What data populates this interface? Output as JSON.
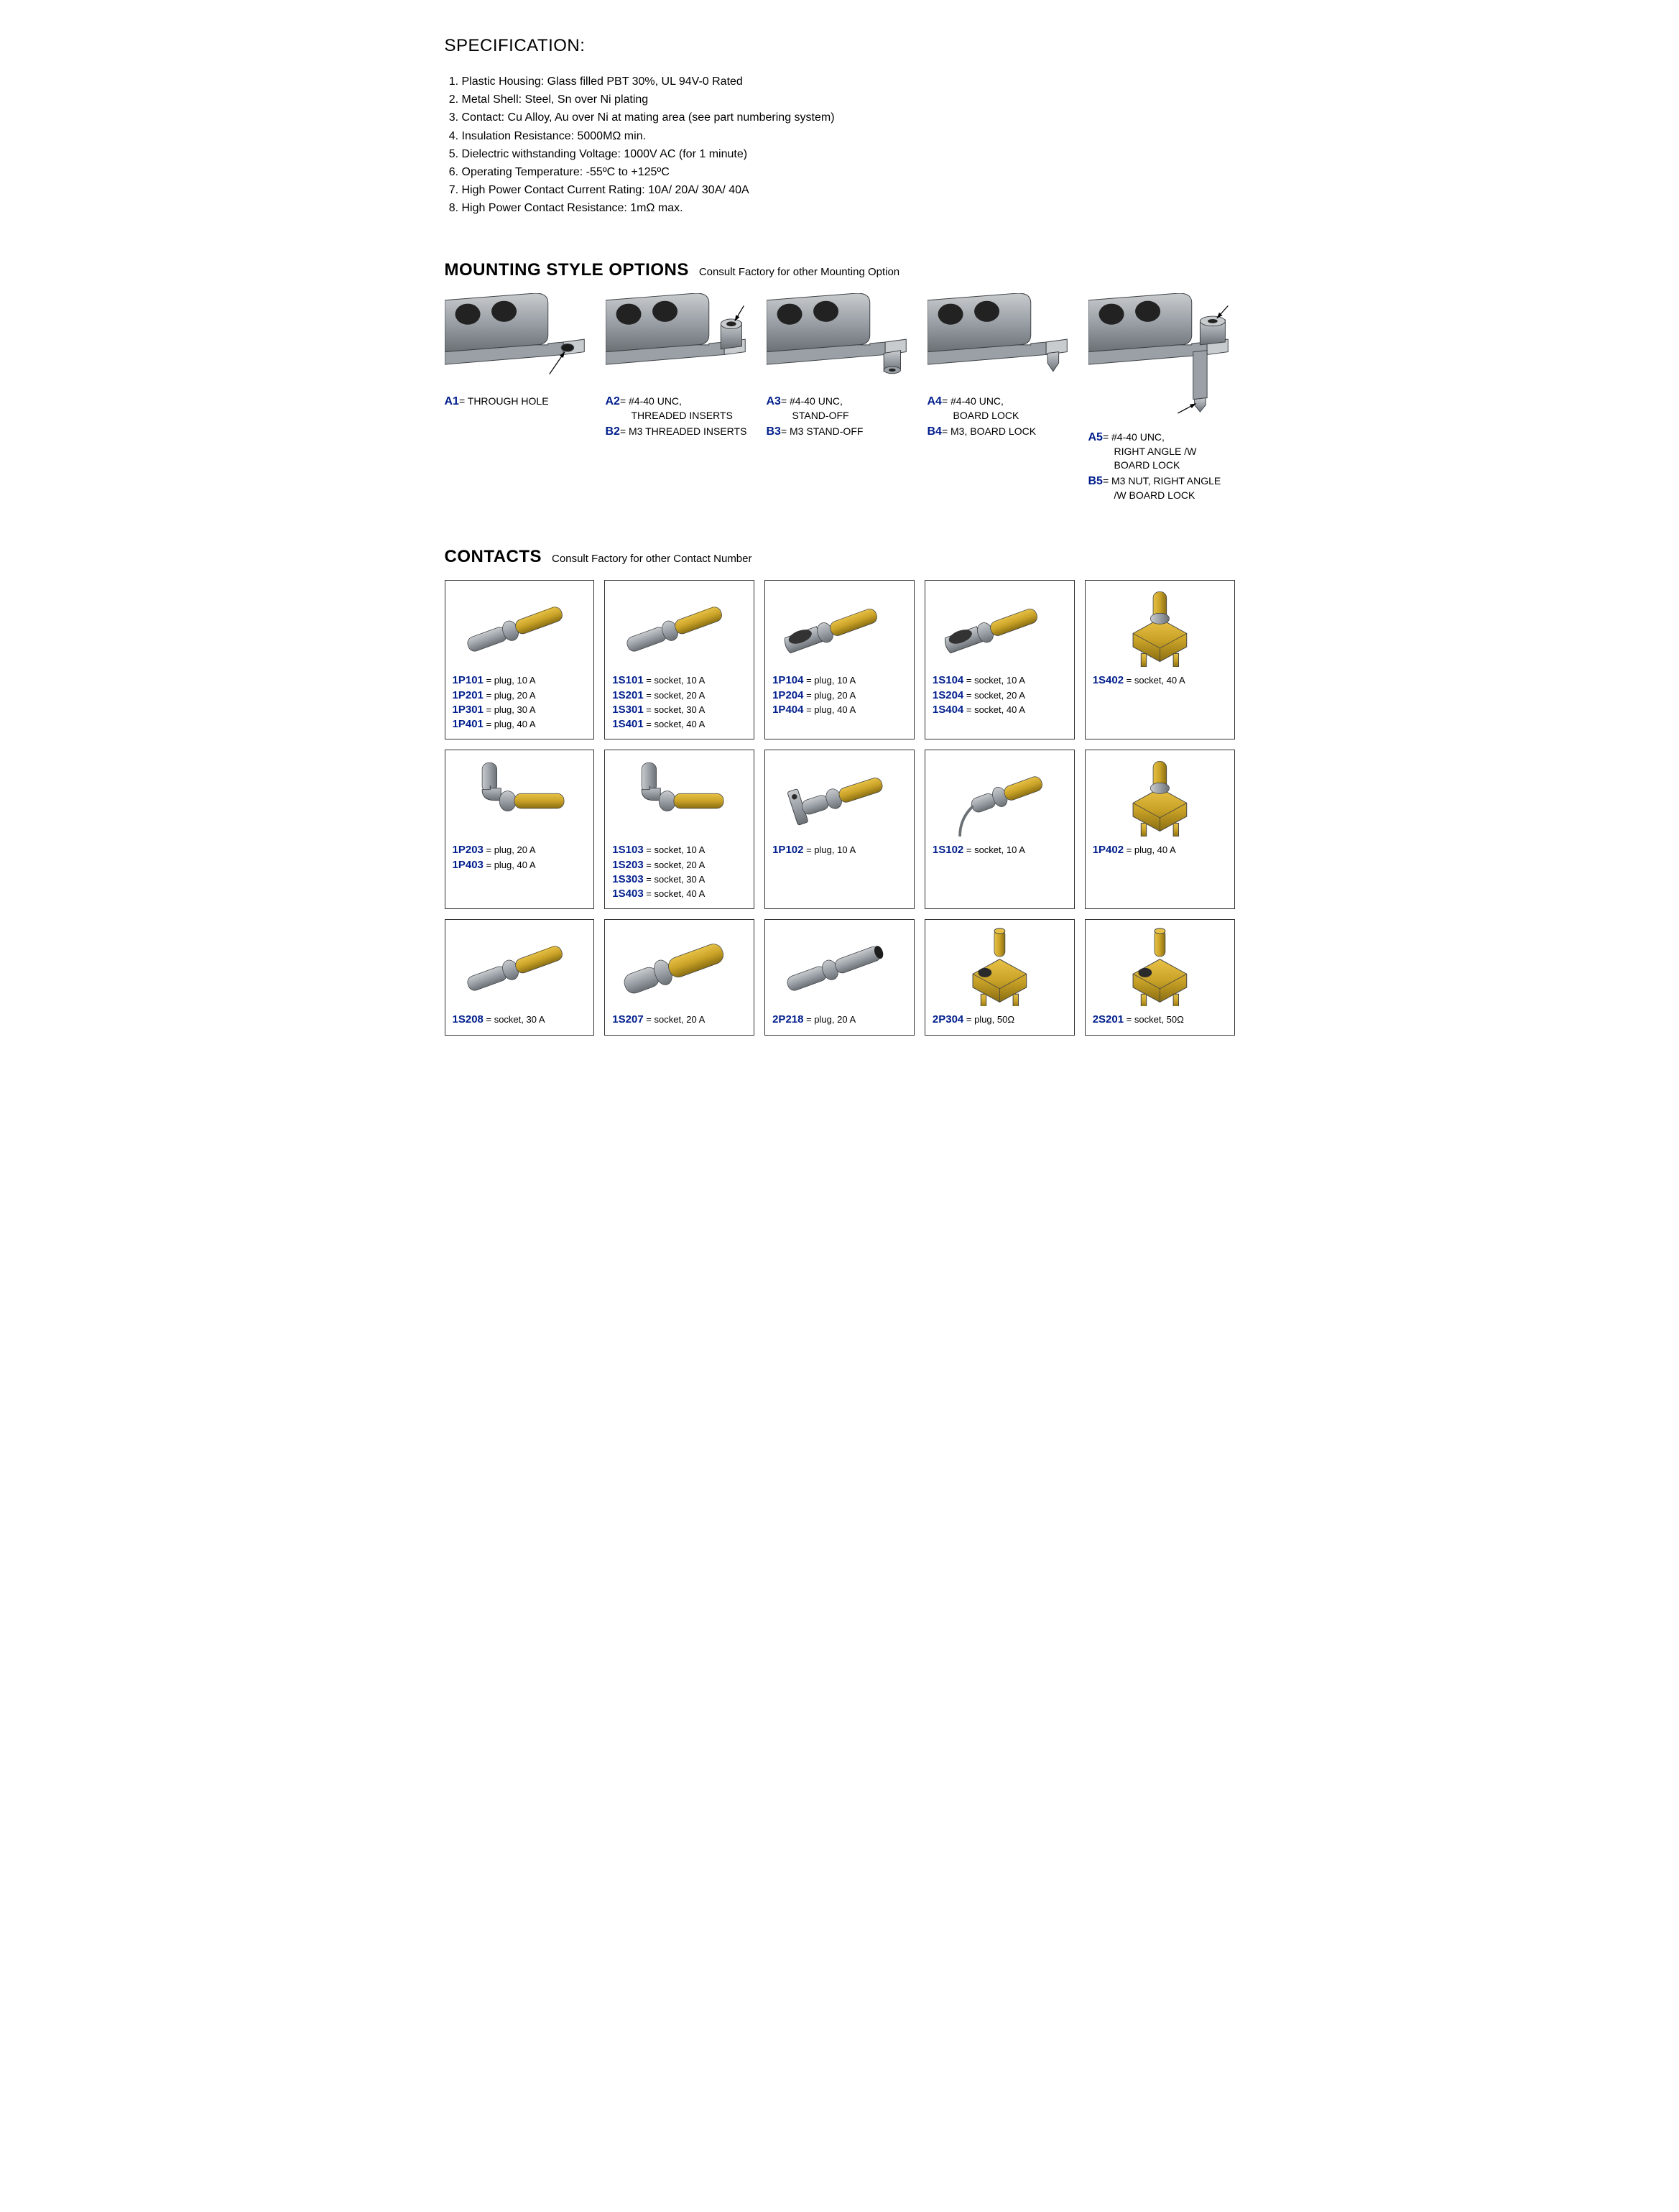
{
  "colors": {
    "code_blue": "#001e8c",
    "text": "#000000",
    "background": "#ffffff",
    "border": "#333333",
    "metal_light": "#c9cccf",
    "metal_mid": "#9aa0a6",
    "metal_dark": "#6b7075",
    "metal_edge": "#3d4145",
    "gold_light": "#e8c246",
    "gold_mid": "#c9a227",
    "gold_dark": "#8a6e12"
  },
  "spec_title": "SPECIFICATION:",
  "spec_items": [
    "Plastic Housing:  Glass filled PBT 30%, UL 94V-0 Rated",
    "Metal Shell:  Steel, Sn over Ni plating",
    "Contact: Cu Alloy, Au over Ni at mating area (see part numbering system)",
    "Insulation Resistance: 5000MΩ min.",
    "Dielectric withstanding Voltage: 1000V AC (for 1 minute)",
    "Operating Temperature: -55ºC to +125ºC",
    "High Power Contact Current Rating: 10A/ 20A/ 30A/ 40A",
    "High Power Contact Resistance: 1mΩ max."
  ],
  "mount_header": "MOUNTING STYLE OPTIONS",
  "mount_note": "Consult Factory for other Mounting Option",
  "mounts": [
    {
      "img": "bracket_hole",
      "entries": [
        {
          "code": "A1",
          "eq": "= ",
          "desc": "THROUGH HOLE",
          "cont": []
        }
      ]
    },
    {
      "img": "bracket_insert",
      "entries": [
        {
          "code": "A2",
          "eq": "= ",
          "desc": "#4-40 UNC,",
          "cont": [
            "THREADED INSERTS"
          ]
        },
        {
          "code": "B2",
          "eq": "= ",
          "desc": "M3 THREADED INSERTS",
          "cont": []
        }
      ]
    },
    {
      "img": "bracket_standoff",
      "entries": [
        {
          "code": "A3",
          "eq": "= ",
          "desc": "#4-40 UNC,",
          "cont": [
            "STAND-OFF"
          ]
        },
        {
          "code": "B3",
          "eq": "= ",
          "desc": "M3 STAND-OFF",
          "cont": []
        }
      ]
    },
    {
      "img": "bracket_boardlock",
      "entries": [
        {
          "code": "A4",
          "eq": "= ",
          "desc": "#4-40 UNC,",
          "cont": [
            "BOARD LOCK"
          ]
        },
        {
          "code": "B4",
          "eq": "= ",
          "desc": "M3, BOARD LOCK",
          "cont": []
        }
      ]
    },
    {
      "img": "bracket_rightangle",
      "entries": [
        {
          "code": "A5",
          "eq": "= ",
          "desc": "#4-40 UNC,",
          "cont": [
            "RIGHT ANGLE /W",
            "BOARD LOCK"
          ]
        },
        {
          "code": "B5",
          "eq": "= ",
          "desc": "M3 NUT, RIGHT ANGLE",
          "cont": [
            "/W BOARD LOCK"
          ]
        }
      ]
    }
  ],
  "contacts_header": "CONTACTS",
  "contacts_note": "Consult Factory for other Contact Number",
  "contacts": [
    {
      "img": "pin_plug_gold",
      "codes": [
        {
          "code": "1P101",
          "eq": " = ",
          "desc": "plug, 10 A"
        },
        {
          "code": "1P201",
          "eq": " = ",
          "desc": "plug, 20 A"
        },
        {
          "code": "1P301",
          "eq": " = ",
          "desc": "plug, 30 A"
        },
        {
          "code": "1P401",
          "eq": " = ",
          "desc": "plug, 40 A"
        }
      ]
    },
    {
      "img": "pin_socket_gold",
      "codes": [
        {
          "code": "1S101",
          "eq": " = ",
          "desc": "socket, 10 A"
        },
        {
          "code": "1S201",
          "eq": " = ",
          "desc": "socket, 20 A"
        },
        {
          "code": "1S301",
          "eq": " = ",
          "desc": "socket, 30 A"
        },
        {
          "code": "1S401",
          "eq": " = ",
          "desc": "socket, 40 A"
        }
      ]
    },
    {
      "img": "pin_plug_scoop",
      "codes": [
        {
          "code": "1P104",
          "eq": " = ",
          "desc": "plug, 10 A"
        },
        {
          "code": "1P204",
          "eq": " = ",
          "desc": "plug, 20 A"
        },
        {
          "code": "1P404",
          "eq": " = ",
          "desc": "plug, 40 A"
        }
      ]
    },
    {
      "img": "pin_socket_scoop",
      "codes": [
        {
          "code": "1S104",
          "eq": " = ",
          "desc": "socket, 10 A"
        },
        {
          "code": "1S204",
          "eq": " = ",
          "desc": "socket, 20 A"
        },
        {
          "code": "1S404",
          "eq": " = ",
          "desc": "socket, 40 A"
        }
      ]
    },
    {
      "img": "ra_socket_gold",
      "codes": [
        {
          "code": "1S402",
          "eq": " = ",
          "desc": "socket, 40 A"
        }
      ]
    },
    {
      "img": "elbow_plug",
      "codes": [
        {
          "code": "1P203",
          "eq": " = ",
          "desc": "plug, 20 A"
        },
        {
          "code": "1P403",
          "eq": " = ",
          "desc": "plug, 40 A"
        }
      ]
    },
    {
      "img": "elbow_socket",
      "codes": [
        {
          "code": "1S103",
          "eq": " = ",
          "desc": "socket, 10 A"
        },
        {
          "code": "1S203",
          "eq": " = ",
          "desc": "socket, 20 A"
        },
        {
          "code": "1S303",
          "eq": " = ",
          "desc": "socket, 30 A"
        },
        {
          "code": "1S403",
          "eq": " = ",
          "desc": "socket, 40 A"
        }
      ]
    },
    {
      "img": "tab_plug",
      "codes": [
        {
          "code": "1P102",
          "eq": " = ",
          "desc": "plug, 10 A"
        }
      ]
    },
    {
      "img": "wire_socket",
      "codes": [
        {
          "code": "1S102",
          "eq": " = ",
          "desc": "socket, 10 A"
        }
      ]
    },
    {
      "img": "ra_plug_gold",
      "codes": [
        {
          "code": "1P402",
          "eq": " = ",
          "desc": "plug, 40 A"
        }
      ]
    },
    {
      "img": "pin_socket_gold2",
      "codes": [
        {
          "code": "1S208",
          "eq": " = ",
          "desc": "socket, 30 A"
        }
      ]
    },
    {
      "img": "pin_socket_wide",
      "codes": [
        {
          "code": "1S207",
          "eq": " = ",
          "desc": "socket, 20 A"
        }
      ]
    },
    {
      "img": "pin_plug_steel2",
      "codes": [
        {
          "code": "2P218",
          "eq": " = ",
          "desc": "plug, 20 A"
        }
      ]
    },
    {
      "img": "ra_coax_plug",
      "codes": [
        {
          "code": "2P304",
          "eq": " = ",
          "desc": "plug, 50Ω"
        }
      ]
    },
    {
      "img": "ra_coax_socket",
      "codes": [
        {
          "code": "2S201",
          "eq": " = ",
          "desc": "socket, 50Ω"
        }
      ]
    }
  ]
}
